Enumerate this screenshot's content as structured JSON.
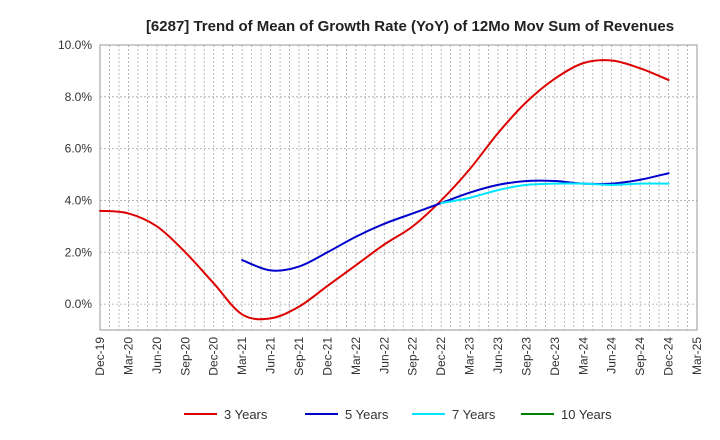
{
  "chart_data": {
    "type": "line",
    "title": "[6287]  Trend of Mean of Growth Rate (YoY) of 12Mo Mov Sum of Revenues",
    "xlabel": "",
    "ylabel": "",
    "ylim": [
      -1.0,
      10.0
    ],
    "y_ticks": [
      0,
      2,
      4,
      6,
      8,
      10
    ],
    "y_tick_labels": [
      "0.0%",
      "2.0%",
      "4.0%",
      "6.0%",
      "8.0%",
      "10.0%"
    ],
    "x_tick_labels": [
      "Dec-19",
      "Mar-20",
      "Jun-20",
      "Sep-20",
      "Dec-20",
      "Mar-21",
      "Jun-21",
      "Sep-21",
      "Dec-21",
      "Mar-22",
      "Jun-22",
      "Sep-22",
      "Dec-22",
      "Mar-23",
      "Jun-23",
      "Sep-23",
      "Dec-23",
      "Mar-24",
      "Jun-24",
      "Sep-24",
      "Dec-24",
      "Mar-25"
    ],
    "x_range_months": [
      0,
      63
    ],
    "grid": true,
    "legend_position": "bottom",
    "series": [
      {
        "name": "3 Years",
        "color": "#dd0000",
        "x": [
          0,
          3,
          6,
          9,
          12,
          15,
          18,
          21,
          24,
          27,
          30,
          33,
          36,
          39,
          42,
          45,
          48,
          51,
          54,
          57,
          60
        ],
        "values": [
          3.6,
          3.5,
          3.0,
          2.0,
          0.8,
          -0.4,
          -0.55,
          -0.1,
          0.7,
          1.5,
          2.3,
          3.0,
          4.0,
          5.2,
          6.6,
          7.8,
          8.7,
          9.3,
          9.4,
          9.1,
          8.65
        ]
      },
      {
        "name": "5 Years",
        "color": "#0000cc",
        "x": [
          15,
          18,
          21,
          24,
          27,
          30,
          33,
          36,
          39,
          42,
          45,
          48,
          51,
          54,
          57,
          60
        ],
        "values": [
          1.7,
          1.3,
          1.45,
          2.0,
          2.6,
          3.1,
          3.5,
          3.9,
          4.3,
          4.6,
          4.75,
          4.75,
          4.65,
          4.65,
          4.8,
          5.05
        ]
      },
      {
        "name": "7 Years",
        "color": "#00e5ff",
        "x": [
          36,
          39,
          42,
          45,
          48,
          51,
          54,
          57,
          60
        ],
        "values": [
          3.9,
          4.1,
          4.4,
          4.6,
          4.65,
          4.65,
          4.6,
          4.65,
          4.65
        ]
      },
      {
        "name": "10 Years",
        "color": "#008000",
        "x": [],
        "values": []
      }
    ]
  }
}
